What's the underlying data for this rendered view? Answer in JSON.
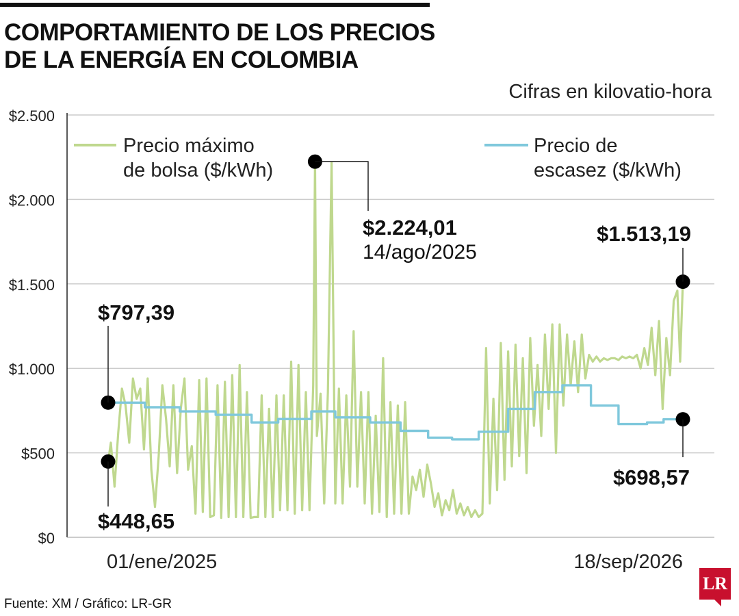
{
  "header": {
    "title_line1": "COMPORTAMIENTO DE LOS PRECIOS",
    "title_line2": "DE LA ENERGÍA EN COLOMBIA",
    "units_note": "Cifras en kilovatio-hora"
  },
  "footer": {
    "source": "Fuente: XM / Gráfico: LR-GR",
    "logo_text": "LR"
  },
  "colors": {
    "bolsa": "#bfd88e",
    "escasez": "#7fc8dc",
    "marker": "#000000",
    "grid": "#cccccc",
    "brand": "#c8102e"
  },
  "chart_data": {
    "type": "line",
    "x_start": "2025-01-01",
    "x_end": "2026-09-18",
    "x_tick_labels": [
      "01/ene/2025",
      "18/sep/2026"
    ],
    "ylim": [
      0,
      2500
    ],
    "y_ticks": [
      0,
      500,
      1000,
      1500,
      2000,
      2500
    ],
    "y_tick_labels": [
      "$0",
      "$500",
      "$1.000",
      "$1.500",
      "$2.000",
      "$2.500"
    ],
    "grid": true,
    "legend_placement": "top",
    "series": [
      {
        "name": "Precio máximo de bolsa ($/kWh)",
        "name_line1": "Precio máximo",
        "name_line2": "de bolsa ($/kWh)",
        "color": "#bfd88e",
        "points": [
          [
            "2025-01-01",
            448.65
          ],
          [
            "2025-01-04",
            560
          ],
          [
            "2025-01-08",
            300
          ],
          [
            "2025-01-12",
            620
          ],
          [
            "2025-01-16",
            880
          ],
          [
            "2025-01-20",
            780
          ],
          [
            "2025-01-24",
            560
          ],
          [
            "2025-01-28",
            940
          ],
          [
            "2025-02-01",
            820
          ],
          [
            "2025-02-05",
            880
          ],
          [
            "2025-02-09",
            520
          ],
          [
            "2025-02-13",
            940
          ],
          [
            "2025-02-17",
            400
          ],
          [
            "2025-02-21",
            180
          ],
          [
            "2025-02-25",
            480
          ],
          [
            "2025-03-01",
            900
          ],
          [
            "2025-03-05",
            700
          ],
          [
            "2025-03-09",
            420
          ],
          [
            "2025-03-13",
            900
          ],
          [
            "2025-03-17",
            380
          ],
          [
            "2025-03-21",
            760
          ],
          [
            "2025-03-25",
            940
          ],
          [
            "2025-03-29",
            400
          ],
          [
            "2025-04-02",
            540
          ],
          [
            "2025-04-06",
            140
          ],
          [
            "2025-04-10",
            930
          ],
          [
            "2025-04-14",
            150
          ],
          [
            "2025-04-18",
            940
          ],
          [
            "2025-04-22",
            120
          ],
          [
            "2025-04-26",
            130
          ],
          [
            "2025-04-30",
            900
          ],
          [
            "2025-05-04",
            115
          ],
          [
            "2025-05-08",
            920
          ],
          [
            "2025-05-12",
            120
          ],
          [
            "2025-05-16",
            960
          ],
          [
            "2025-05-20",
            120
          ],
          [
            "2025-05-24",
            1020
          ],
          [
            "2025-05-28",
            120
          ],
          [
            "2025-06-01",
            860
          ],
          [
            "2025-06-05",
            115
          ],
          [
            "2025-06-09",
            120
          ],
          [
            "2025-06-13",
            120
          ],
          [
            "2025-06-17",
            840
          ],
          [
            "2025-06-21",
            120
          ],
          [
            "2025-06-25",
            760
          ],
          [
            "2025-06-29",
            120
          ],
          [
            "2025-07-03",
            840
          ],
          [
            "2025-07-07",
            160
          ],
          [
            "2025-07-11",
            840
          ],
          [
            "2025-07-15",
            160
          ],
          [
            "2025-07-19",
            1040
          ],
          [
            "2025-07-23",
            140
          ],
          [
            "2025-07-27",
            1020
          ],
          [
            "2025-07-31",
            160
          ],
          [
            "2025-08-04",
            860
          ],
          [
            "2025-08-08",
            160
          ],
          [
            "2025-08-12",
            900
          ],
          [
            "2025-08-14",
            2224.01
          ],
          [
            "2025-08-16",
            600
          ],
          [
            "2025-08-20",
            850
          ],
          [
            "2025-08-24",
            200
          ],
          [
            "2025-08-28",
            860
          ],
          [
            "2025-09-01",
            2220
          ],
          [
            "2025-09-05",
            200
          ],
          [
            "2025-09-09",
            880
          ],
          [
            "2025-09-13",
            200
          ],
          [
            "2025-09-17",
            840
          ],
          [
            "2025-09-21",
            300
          ],
          [
            "2025-09-25",
            1220
          ],
          [
            "2025-09-29",
            300
          ],
          [
            "2025-10-03",
            860
          ],
          [
            "2025-10-07",
            200
          ],
          [
            "2025-10-11",
            860
          ],
          [
            "2025-10-15",
            140
          ],
          [
            "2025-10-19",
            720
          ],
          [
            "2025-10-23",
            150
          ],
          [
            "2025-10-27",
            1060
          ],
          [
            "2025-10-31",
            120
          ],
          [
            "2025-11-04",
            800
          ],
          [
            "2025-11-08",
            140
          ],
          [
            "2025-11-12",
            780
          ],
          [
            "2025-11-16",
            140
          ],
          [
            "2025-11-20",
            800
          ],
          [
            "2025-11-24",
            140
          ],
          [
            "2025-11-28",
            360
          ],
          [
            "2025-12-02",
            280
          ],
          [
            "2025-12-06",
            400
          ],
          [
            "2025-12-10",
            240
          ],
          [
            "2025-12-14",
            430
          ],
          [
            "2025-12-18",
            320
          ],
          [
            "2025-12-22",
            180
          ],
          [
            "2025-12-26",
            260
          ],
          [
            "2025-12-30",
            130
          ],
          [
            "2026-01-03",
            220
          ],
          [
            "2026-01-07",
            160
          ],
          [
            "2026-01-11",
            280
          ],
          [
            "2026-01-15",
            140
          ],
          [
            "2026-01-19",
            200
          ],
          [
            "2026-01-23",
            130
          ],
          [
            "2026-01-27",
            180
          ],
          [
            "2026-01-31",
            120
          ],
          [
            "2026-02-04",
            160
          ],
          [
            "2026-02-08",
            120
          ],
          [
            "2026-02-12",
            140
          ],
          [
            "2026-02-16",
            1120
          ],
          [
            "2026-02-20",
            200
          ],
          [
            "2026-02-24",
            820
          ],
          [
            "2026-02-28",
            280
          ],
          [
            "2026-03-04",
            1150
          ],
          [
            "2026-03-08",
            340
          ],
          [
            "2026-03-12",
            1100
          ],
          [
            "2026-03-16",
            420
          ],
          [
            "2026-03-20",
            1140
          ],
          [
            "2026-03-24",
            480
          ],
          [
            "2026-03-28",
            1060
          ],
          [
            "2026-04-01",
            380
          ],
          [
            "2026-04-05",
            1180
          ],
          [
            "2026-04-09",
            660
          ],
          [
            "2026-04-13",
            1020
          ],
          [
            "2026-04-17",
            600
          ],
          [
            "2026-04-21",
            1200
          ],
          [
            "2026-04-25",
            760
          ],
          [
            "2026-04-29",
            1260
          ],
          [
            "2026-05-03",
            500
          ],
          [
            "2026-05-07",
            1260
          ],
          [
            "2026-05-11",
            780
          ],
          [
            "2026-05-15",
            1200
          ],
          [
            "2026-05-19",
            900
          ],
          [
            "2026-05-23",
            1160
          ],
          [
            "2026-05-27",
            860
          ],
          [
            "2026-05-31",
            1200
          ],
          [
            "2026-06-04",
            940
          ],
          [
            "2026-06-08",
            1080
          ],
          [
            "2026-06-12",
            1040
          ],
          [
            "2026-06-16",
            1070
          ],
          [
            "2026-06-20",
            1040
          ],
          [
            "2026-06-24",
            1060
          ],
          [
            "2026-06-28",
            1050
          ],
          [
            "2026-07-02",
            1060
          ],
          [
            "2026-07-06",
            1060
          ],
          [
            "2026-07-10",
            1050
          ],
          [
            "2026-07-14",
            1070
          ],
          [
            "2026-07-18",
            1060
          ],
          [
            "2026-07-22",
            1070
          ],
          [
            "2026-07-26",
            1060
          ],
          [
            "2026-07-30",
            1080
          ],
          [
            "2026-08-03",
            1000
          ],
          [
            "2026-08-07",
            1120
          ],
          [
            "2026-08-11",
            1020
          ],
          [
            "2026-08-15",
            1240
          ],
          [
            "2026-08-19",
            960
          ],
          [
            "2026-08-23",
            1280
          ],
          [
            "2026-08-27",
            760
          ],
          [
            "2026-08-31",
            1180
          ],
          [
            "2026-09-04",
            960
          ],
          [
            "2026-09-08",
            1400
          ],
          [
            "2026-09-12",
            1460
          ],
          [
            "2026-09-15",
            1040
          ],
          [
            "2026-09-18",
            1513.19
          ]
        ]
      },
      {
        "name": "Precio de escasez ($/kWh)",
        "name_line1": "Precio de",
        "name_line2": "escasez ($/kWh)",
        "color": "#7fc8dc",
        "points": [
          [
            "2025-01-01",
            797.39
          ],
          [
            "2025-02-10",
            797
          ],
          [
            "2025-02-10",
            770
          ],
          [
            "2025-03-20",
            770
          ],
          [
            "2025-03-20",
            745
          ],
          [
            "2025-04-28",
            745
          ],
          [
            "2025-04-28",
            725
          ],
          [
            "2025-06-06",
            725
          ],
          [
            "2025-06-06",
            680
          ],
          [
            "2025-07-05",
            680
          ],
          [
            "2025-07-05",
            700
          ],
          [
            "2025-08-10",
            700
          ],
          [
            "2025-08-10",
            745
          ],
          [
            "2025-09-05",
            745
          ],
          [
            "2025-09-05",
            710
          ],
          [
            "2025-10-13",
            710
          ],
          [
            "2025-10-13",
            680
          ],
          [
            "2025-11-15",
            680
          ],
          [
            "2025-11-15",
            630
          ],
          [
            "2025-12-15",
            630
          ],
          [
            "2025-12-15",
            590
          ],
          [
            "2026-01-10",
            590
          ],
          [
            "2026-01-10",
            580
          ],
          [
            "2026-02-08",
            580
          ],
          [
            "2026-02-08",
            625
          ],
          [
            "2026-03-12",
            625
          ],
          [
            "2026-03-12",
            760
          ],
          [
            "2026-04-10",
            760
          ],
          [
            "2026-04-10",
            860
          ],
          [
            "2026-05-10",
            860
          ],
          [
            "2026-05-10",
            900
          ],
          [
            "2026-06-10",
            900
          ],
          [
            "2026-06-10",
            780
          ],
          [
            "2026-07-10",
            780
          ],
          [
            "2026-07-10",
            670
          ],
          [
            "2026-08-10",
            670
          ],
          [
            "2026-08-10",
            680
          ],
          [
            "2026-08-28",
            680
          ],
          [
            "2026-08-28",
            698.57
          ],
          [
            "2026-09-18",
            698.57
          ]
        ]
      }
    ],
    "annotations": [
      {
        "id": "esc_start",
        "value_label": "$797,39",
        "date": "2025-01-01",
        "value": 797.39
      },
      {
        "id": "bolsa_start",
        "value_label": "$448,65",
        "date": "2025-01-01",
        "value": 448.65
      },
      {
        "id": "bolsa_peak",
        "value_label": "$2.224,01",
        "date_label": "14/ago/2025",
        "date": "2025-08-14",
        "value": 2224.01
      },
      {
        "id": "bolsa_end",
        "value_label": "$1.513,19",
        "date": "2026-09-18",
        "value": 1513.19
      },
      {
        "id": "esc_end",
        "value_label": "$698,57",
        "date": "2026-09-18",
        "value": 698.57
      }
    ]
  }
}
